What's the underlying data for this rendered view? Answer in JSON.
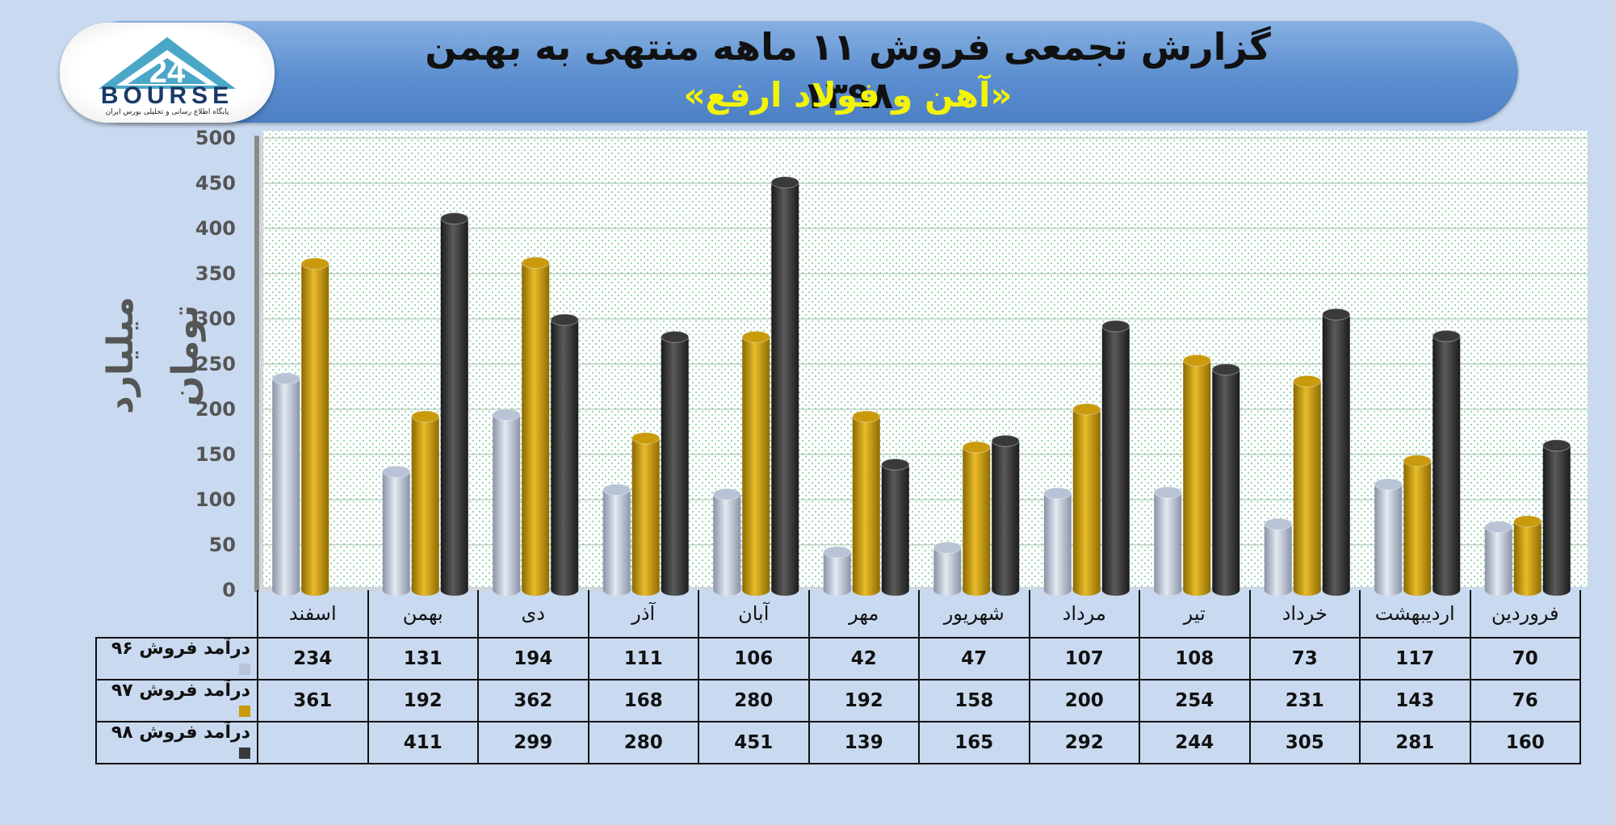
{
  "header": {
    "title": "گزارش تجمعی فروش ۱۱ ماهه منتهی به بهمن ۱۳۹۸",
    "subtitle": "«آهن و فولاد ارفع»"
  },
  "logo": {
    "text": "BOURSE",
    "caption": "پایگاه اطلاع رسانی و تحلیلی بورس ایران"
  },
  "chart_data": {
    "type": "bar",
    "ylabel": "میلیارد تومان",
    "ylim": [
      0,
      500
    ],
    "yticks": [
      0,
      50,
      100,
      150,
      200,
      250,
      300,
      350,
      400,
      450,
      500
    ],
    "categories": [
      "فروردین",
      "اردیبهشت",
      "خرداد",
      "تیر",
      "مرداد",
      "شهریور",
      "مهر",
      "آبان",
      "آذر",
      "دی",
      "بهمن",
      "اسفند"
    ],
    "series": [
      {
        "name": "درآمد فروش ۹۶",
        "color": "#b8c3d6",
        "values": [
          70,
          117,
          73,
          108,
          107,
          47,
          42,
          106,
          111,
          194,
          131,
          234
        ]
      },
      {
        "name": "درآمد فروش ۹۷",
        "color": "#c89a0c",
        "values": [
          76,
          143,
          231,
          254,
          200,
          158,
          192,
          280,
          168,
          362,
          192,
          361
        ]
      },
      {
        "name": "درآمد فروش ۹۸",
        "color": "#3a3a3a",
        "values": [
          160,
          281,
          305,
          244,
          292,
          165,
          139,
          451,
          280,
          299,
          411,
          null
        ]
      }
    ],
    "grid": true,
    "table_below": true
  }
}
